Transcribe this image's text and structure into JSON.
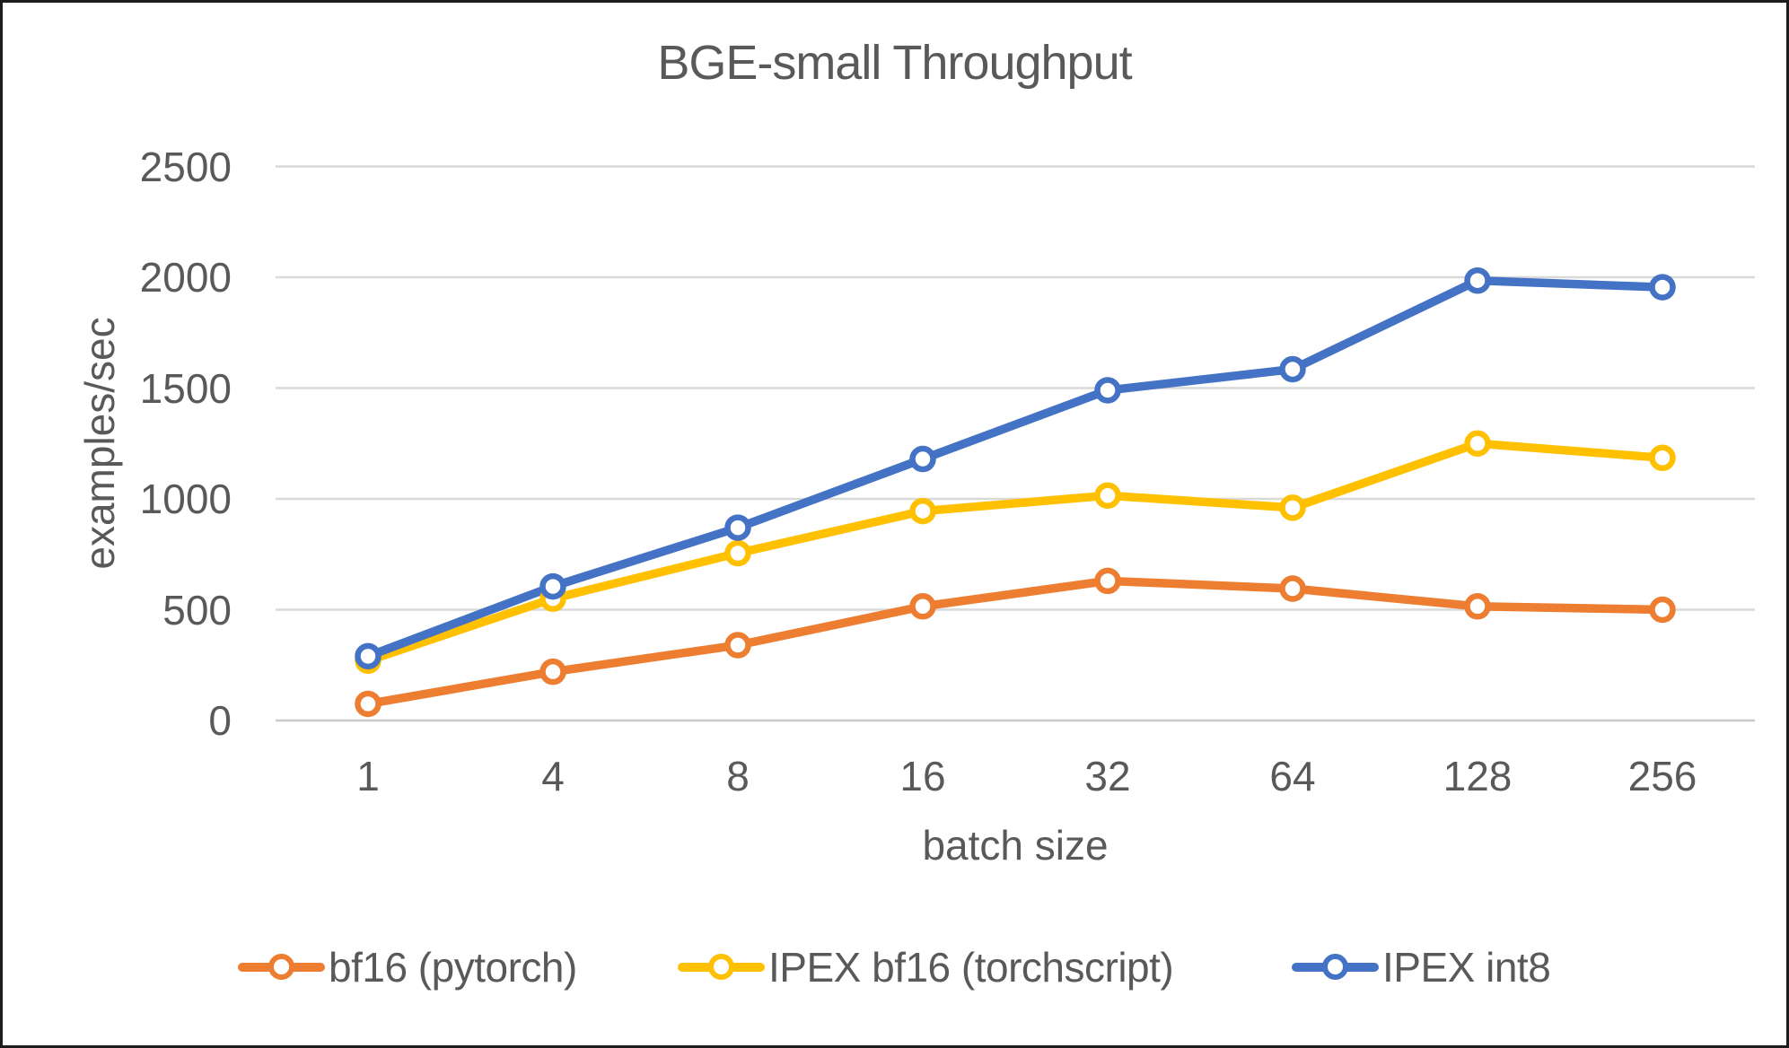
{
  "window": {
    "background": "#ffffff",
    "frame_border_color": "#1c1c1c"
  },
  "chart_data": {
    "type": "line",
    "title": "BGE-small Throughput",
    "xlabel": "batch size",
    "ylabel": "examples/sec",
    "categories": [
      "1",
      "4",
      "8",
      "16",
      "32",
      "64",
      "128",
      "256"
    ],
    "series": [
      {
        "name": "bf16 (pytorch)",
        "color": "#ED7D31",
        "values": [
          75,
          220,
          340,
          515,
          630,
          595,
          515,
          500
        ]
      },
      {
        "name": "IPEX bf16 (torchscript)",
        "color": "#FFC000",
        "values": [
          270,
          550,
          755,
          945,
          1015,
          960,
          1250,
          1185
        ]
      },
      {
        "name": "IPEX int8",
        "color": "#4472C4",
        "values": [
          290,
          605,
          870,
          1180,
          1490,
          1585,
          1985,
          1955
        ]
      }
    ],
    "y_ticks": [
      0,
      500,
      1000,
      1500,
      2000,
      2500
    ],
    "ylim": [
      0,
      2500
    ],
    "grid": true,
    "gridline_color": "#D9D9D9",
    "zero_line_color": "#C9C9C9",
    "text_color": "#595959",
    "legend_position": "bottom",
    "marker_style": "open-circle"
  }
}
